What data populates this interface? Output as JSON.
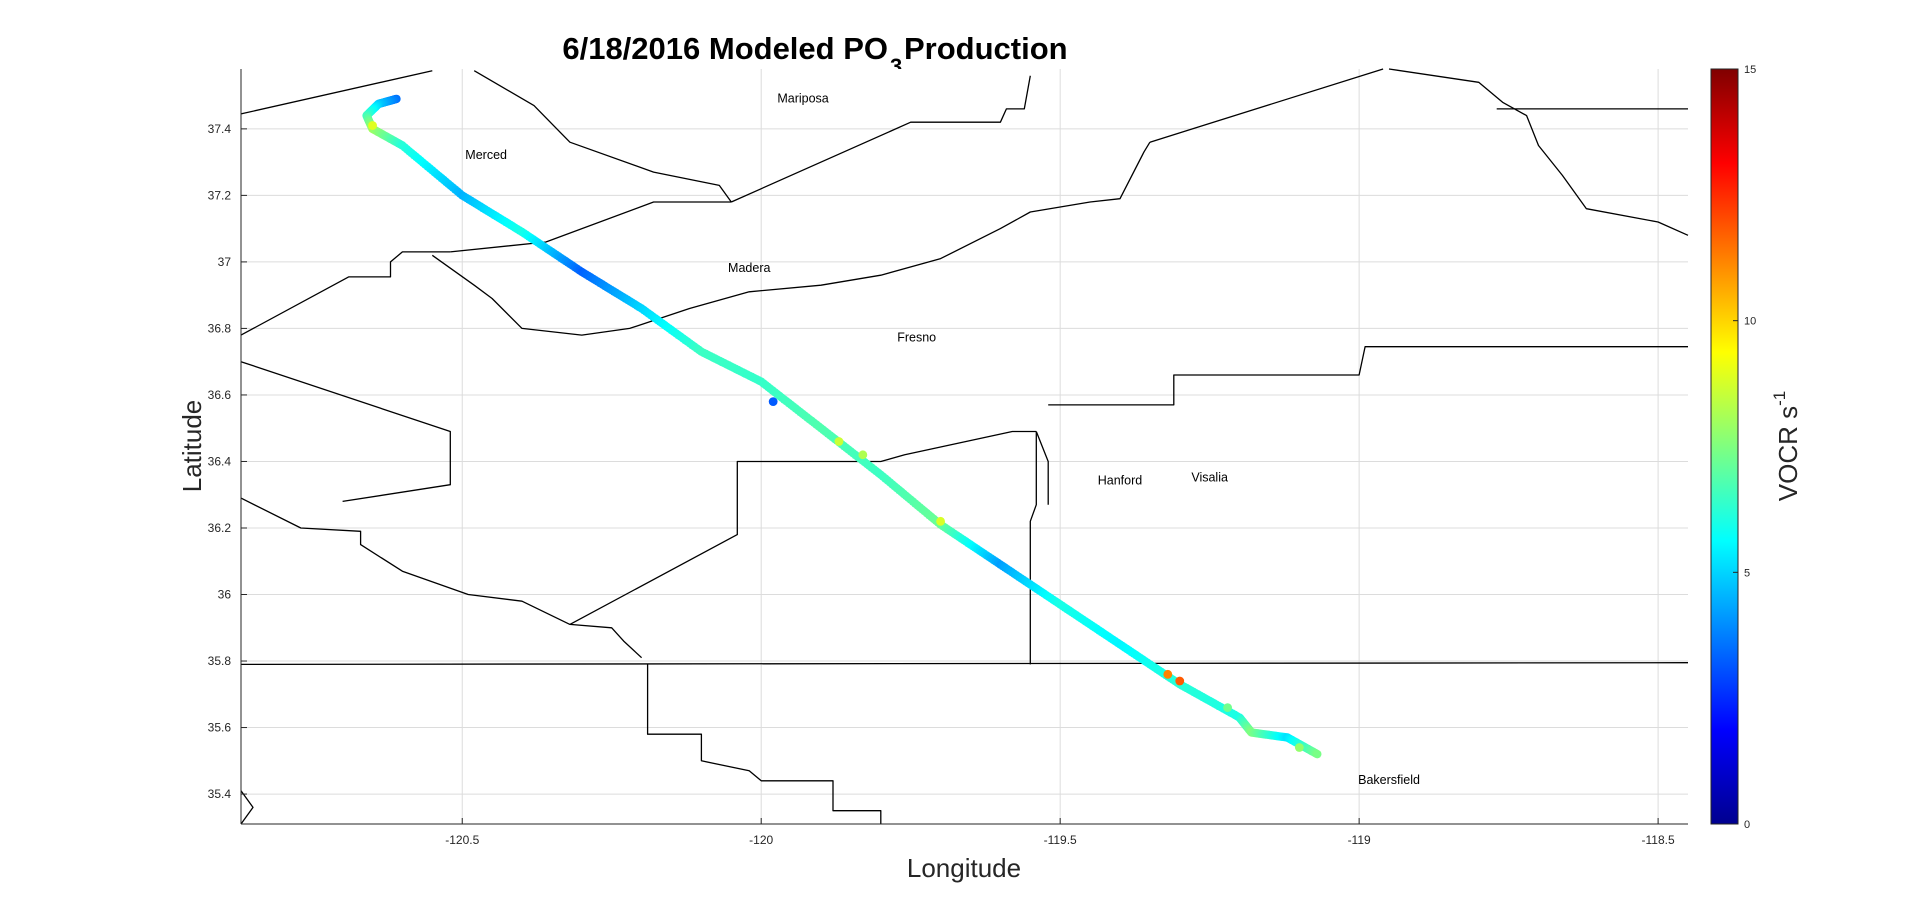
{
  "chart_data": {
    "type": "scatter",
    "title": {
      "prefix": "6/18/2016 Modeled PO",
      "subscript": "3",
      "suffix": " Production"
    },
    "xlabel": "Longitude",
    "ylabel": "Latitude",
    "xlim": [
      -120.87,
      -118.45
    ],
    "ylim": [
      35.31,
      37.58
    ],
    "xticks": [
      -120.5,
      -120,
      -119.5,
      -119,
      -118.5
    ],
    "yticks": [
      35.4,
      35.6,
      35.8,
      36,
      36.2,
      36.4,
      36.6,
      36.8,
      37,
      37.2,
      37.4
    ],
    "grid": true,
    "colorbar": {
      "label": "VOCR s",
      "label_superscript": "-1",
      "range": [
        0,
        15
      ],
      "ticks": [
        0,
        5,
        10,
        15
      ],
      "colormap": "jet"
    },
    "county_labels": [
      {
        "name": "Mariposa",
        "lon": -119.93,
        "lat": 37.48
      },
      {
        "name": "Merced",
        "lon": -120.46,
        "lat": 37.31
      },
      {
        "name": "Madera",
        "lon": -120.02,
        "lat": 36.97
      },
      {
        "name": "Fresno",
        "lon": -119.74,
        "lat": 36.76
      },
      {
        "name": "Hanford",
        "lon": -119.4,
        "lat": 36.33
      },
      {
        "name": "Visalia",
        "lon": -119.25,
        "lat": 36.34
      },
      {
        "name": "Bakersfield",
        "lon": -118.95,
        "lat": 35.43
      }
    ],
    "boundaries": [
      [
        [
          -120.87,
          37.445
        ],
        [
          -120.55,
          37.575
        ]
      ],
      [
        [
          -120.48,
          37.575
        ],
        [
          -120.38,
          37.47
        ],
        [
          -120.32,
          37.36
        ],
        [
          -120.18,
          37.27
        ],
        [
          -120.07,
          37.23
        ],
        [
          -120.05,
          37.18
        ]
      ],
      [
        [
          -120.05,
          37.18
        ],
        [
          -119.75,
          37.42
        ],
        [
          -119.6,
          37.42
        ],
        [
          -119.59,
          37.46
        ],
        [
          -119.56,
          37.46
        ],
        [
          -119.55,
          37.56
        ]
      ],
      [
        [
          -119.35,
          37.36
        ],
        [
          -118.96,
          37.58
        ]
      ],
      [
        [
          -118.95,
          37.58
        ],
        [
          -118.8,
          37.54
        ],
        [
          -118.76,
          37.48
        ],
        [
          -118.72,
          37.44
        ],
        [
          -118.7,
          37.35
        ],
        [
          -118.66,
          37.26
        ],
        [
          -118.62,
          37.16
        ],
        [
          -118.5,
          37.12
        ],
        [
          -118.45,
          37.08
        ]
      ],
      [
        [
          -118.77,
          37.46
        ],
        [
          -118.45,
          37.46
        ]
      ],
      [
        [
          -120.87,
          36.78
        ],
        [
          -120.69,
          36.955
        ],
        [
          -120.62,
          36.955
        ],
        [
          -120.62,
          37.0
        ],
        [
          -120.6,
          37.03
        ],
        [
          -120.52,
          37.03
        ]
      ],
      [
        [
          -120.52,
          37.03
        ],
        [
          -120.36,
          37.06
        ],
        [
          -120.18,
          37.18
        ],
        [
          -120.05,
          37.18
        ]
      ],
      [
        [
          -120.55,
          37.02
        ],
        [
          -120.48,
          36.93
        ],
        [
          -120.45,
          36.89
        ],
        [
          -120.4,
          36.8
        ],
        [
          -120.3,
          36.78
        ],
        [
          -120.22,
          36.8
        ],
        [
          -120.12,
          36.86
        ],
        [
          -120.02,
          36.91
        ],
        [
          -119.9,
          36.93
        ],
        [
          -119.8,
          36.96
        ],
        [
          -119.7,
          37.01
        ],
        [
          -119.6,
          37.1
        ],
        [
          -119.55,
          37.15
        ],
        [
          -119.45,
          37.18
        ],
        [
          -119.4,
          37.19
        ],
        [
          -119.36,
          37.33
        ],
        [
          -119.35,
          37.36
        ]
      ],
      [
        [
          -120.87,
          36.7
        ],
        [
          -120.52,
          36.49
        ],
        [
          -120.52,
          36.33
        ],
        [
          -120.7,
          36.28
        ]
      ],
      [
        [
          -120.87,
          36.29
        ],
        [
          -120.77,
          36.2
        ],
        [
          -120.67,
          36.19
        ],
        [
          -120.67,
          36.15
        ],
        [
          -120.6,
          36.07
        ],
        [
          -120.49,
          36.0
        ],
        [
          -120.4,
          35.98
        ],
        [
          -120.32,
          35.91
        ],
        [
          -120.25,
          35.9
        ],
        [
          -120.23,
          35.86
        ],
        [
          -120.2,
          35.81
        ]
      ],
      [
        [
          -120.32,
          35.91
        ],
        [
          -120.04,
          36.18
        ],
        [
          -120.04,
          36.4
        ],
        [
          -119.8,
          36.4
        ],
        [
          -119.76,
          36.42
        ],
        [
          -119.58,
          36.49
        ],
        [
          -119.54,
          36.49
        ]
      ],
      [
        [
          -119.54,
          36.49
        ],
        [
          -119.54,
          36.27
        ],
        [
          -119.55,
          36.22
        ],
        [
          -119.55,
          35.79
        ]
      ],
      [
        [
          -119.54,
          36.49
        ],
        [
          -119.52,
          36.4
        ],
        [
          -119.52,
          36.27
        ]
      ],
      [
        [
          -119.52,
          36.57
        ],
        [
          -119.31,
          36.57
        ],
        [
          -119.31,
          36.66
        ],
        [
          -119.0,
          36.66
        ],
        [
          -118.99,
          36.745
        ],
        [
          -118.45,
          36.745
        ]
      ],
      [
        [
          -120.87,
          35.79
        ],
        [
          -118.45,
          35.795
        ]
      ],
      [
        [
          -120.19,
          35.79
        ],
        [
          -120.19,
          35.58
        ],
        [
          -120.1,
          35.58
        ],
        [
          -120.1,
          35.5
        ],
        [
          -120.02,
          35.47
        ],
        [
          -120.0,
          35.44
        ],
        [
          -119.88,
          35.44
        ],
        [
          -119.88,
          35.35
        ],
        [
          -119.8,
          35.35
        ],
        [
          -119.8,
          35.31
        ]
      ],
      [
        [
          -120.87,
          35.41
        ],
        [
          -120.85,
          35.36
        ],
        [
          -120.87,
          35.31
        ]
      ]
    ],
    "track": {
      "lon": [
        -120.61,
        -120.64,
        -120.66,
        -120.65,
        -120.6,
        -120.5,
        -120.4,
        -120.3,
        -120.2,
        -120.1,
        -120.0,
        -119.9,
        -119.8,
        -119.7,
        -119.6,
        -119.5,
        -119.4,
        -119.3,
        -119.2,
        -119.18,
        -119.12,
        -119.07
      ],
      "lat": [
        37.49,
        37.475,
        37.44,
        37.4,
        37.35,
        37.2,
        37.09,
        36.97,
        36.86,
        36.73,
        36.64,
        36.5,
        36.36,
        36.21,
        36.09,
        35.97,
        35.85,
        35.73,
        35.63,
        35.585,
        35.57,
        35.52
      ],
      "vocr": [
        3.5,
        4.8,
        6.5,
        8.0,
        6.2,
        4.5,
        6.0,
        3.3,
        5.0,
        6.5,
        6.4,
        6.8,
        6.5,
        7.2,
        4.2,
        6.0,
        5.5,
        6.2,
        6.0,
        7.5,
        5.2,
        7.4
      ],
      "spikes": [
        {
          "lon": -120.65,
          "lat": 37.41,
          "vocr": 8.9
        },
        {
          "lon": -119.98,
          "lat": 36.58,
          "vocr": 3.2
        },
        {
          "lon": -119.87,
          "lat": 36.46,
          "vocr": 8.6
        },
        {
          "lon": -119.83,
          "lat": 36.42,
          "vocr": 8.2
        },
        {
          "lon": -119.7,
          "lat": 36.22,
          "vocr": 8.8
        },
        {
          "lon": -119.32,
          "lat": 35.76,
          "vocr": 11.2
        },
        {
          "lon": -119.3,
          "lat": 35.74,
          "vocr": 11.8
        },
        {
          "lon": -119.22,
          "lat": 35.66,
          "vocr": 7.3
        },
        {
          "lon": -119.1,
          "lat": 35.54,
          "vocr": 7.8
        }
      ]
    }
  }
}
